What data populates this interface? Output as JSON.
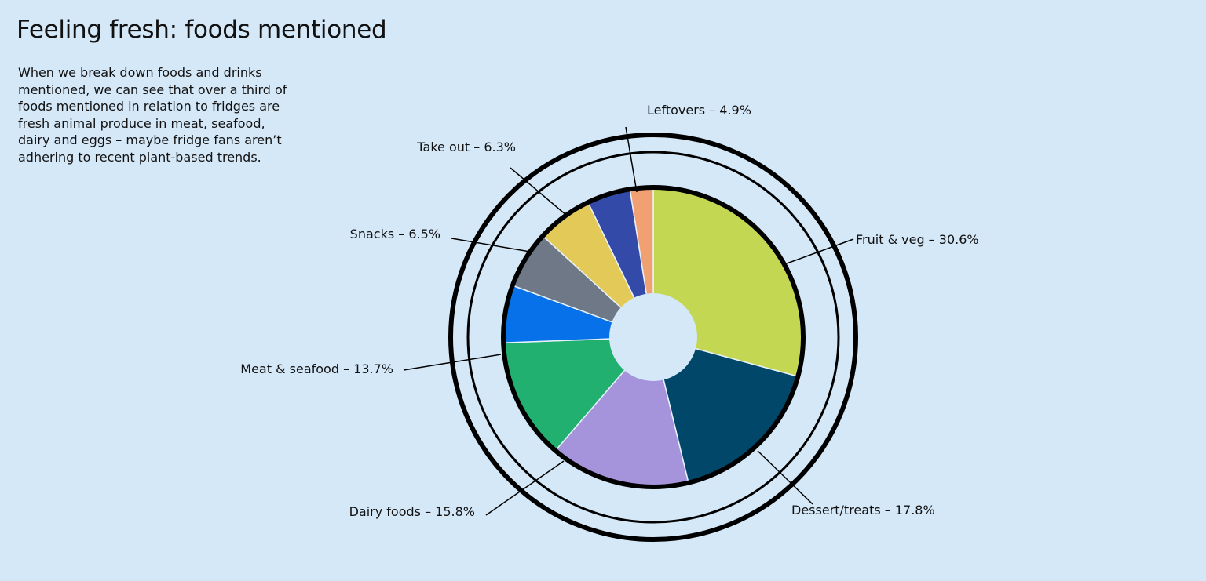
{
  "title": "Feeling fresh: foods mentioned",
  "intro": "When we break down foods and drinks mentioned, we can see that over a third of foods mentioned in relation to fridges are fresh animal produce in meat, seafood, dairy and eggs – maybe fridge fans aren’t adhering to recent plant-based trends.",
  "chart_data": {
    "type": "pie",
    "variant": "donut",
    "categories": [
      "Fruit & veg",
      "Dessert/treats",
      "Dairy foods",
      "Meat & seafood",
      "Snacks",
      "Take out",
      "Leftovers"
    ],
    "values": [
      30.6,
      17.8,
      15.8,
      13.7,
      6.5,
      6.3,
      4.9
    ],
    "colors": [
      "#c4d753",
      "#01476a",
      "#a594dc",
      "#22b070",
      "#0671e8",
      "#6f7886",
      "#e2c958",
      "#334aa8",
      "#f1a072"
    ],
    "extra_slices": [
      {
        "color": "#0671e8",
        "value": 6.5
      },
      {
        "color": "#6f7886",
        "value": 6.5
      },
      {
        "color": "#e2c958",
        "value": 6.3
      },
      {
        "color": "#334aa8",
        "value": 4.9
      },
      {
        "color": "#f1a072",
        "value": 2.6
      }
    ],
    "labels": [
      "Fruit & veg – 30.6%",
      "Dessert/treats – 17.8%",
      "Dairy foods – 15.8%",
      "Meat & seafood – 13.7%",
      "Snacks – 6.5%",
      "Take out – 6.3%",
      "Leftovers – 4.9%"
    ],
    "legend": "none"
  }
}
